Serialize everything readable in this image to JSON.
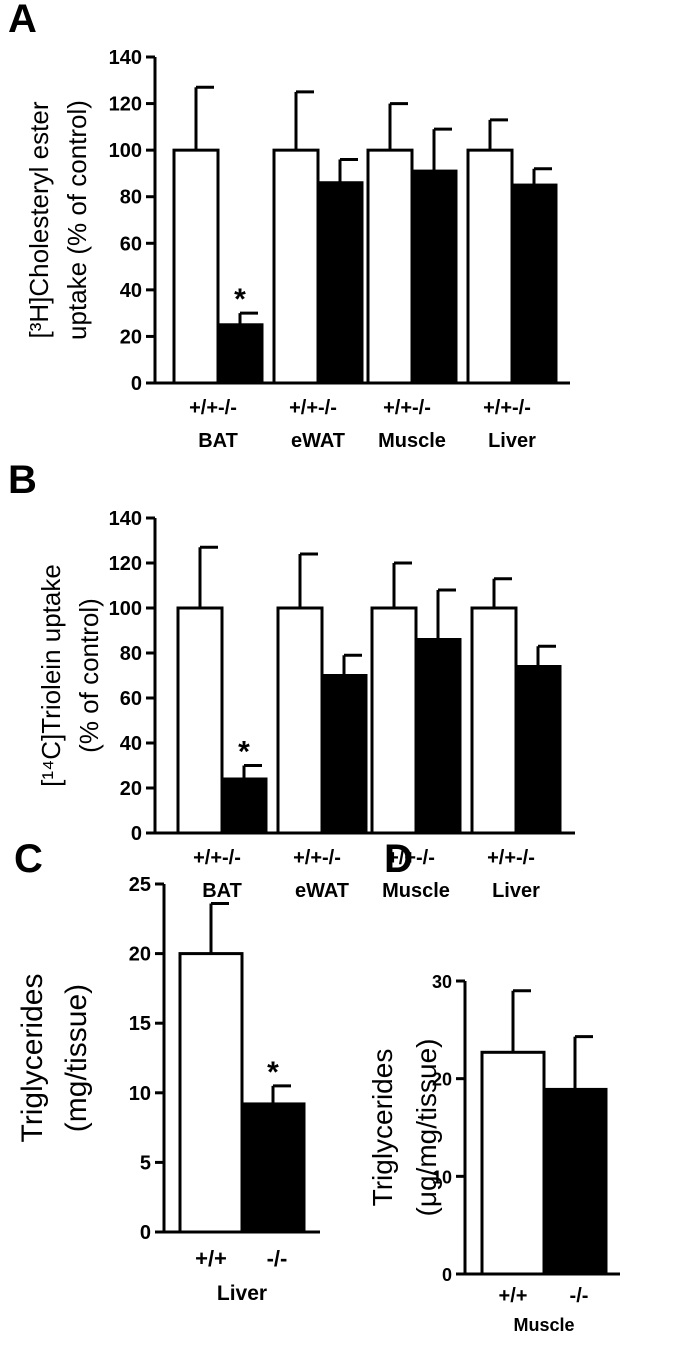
{
  "chart_data": [
    {
      "panel": "A",
      "type": "bar",
      "ylabel_line1": "[³H]Cholesteryl ester",
      "ylabel_line2": "uptake (% of control)",
      "ylim": [
        0,
        140
      ],
      "yticks": [
        0,
        20,
        40,
        60,
        80,
        100,
        120,
        140
      ],
      "groups": [
        {
          "name": "BAT",
          "labels": [
            "+/+",
            "-/-"
          ],
          "values": [
            100,
            25
          ],
          "errors": [
            27,
            5
          ],
          "sig": [
            false,
            true
          ]
        },
        {
          "name": "eWAT",
          "labels": [
            "+/+",
            "-/-"
          ],
          "values": [
            100,
            86
          ],
          "errors": [
            25,
            10
          ],
          "sig": [
            false,
            false
          ]
        },
        {
          "name": "Muscle",
          "labels": [
            "+/+",
            "-/-"
          ],
          "values": [
            100,
            91
          ],
          "errors": [
            20,
            18
          ],
          "sig": [
            false,
            false
          ]
        },
        {
          "name": "Liver",
          "labels": [
            "+/+",
            "-/-"
          ],
          "values": [
            100,
            85
          ],
          "errors": [
            13,
            7
          ],
          "sig": [
            false,
            false
          ]
        }
      ],
      "fills": [
        "#ffffff",
        "#000000"
      ]
    },
    {
      "panel": "B",
      "type": "bar",
      "ylabel_line1": "[¹⁴C]Triolein uptake",
      "ylabel_line2": "(% of control)",
      "ylim": [
        0,
        140
      ],
      "yticks": [
        0,
        20,
        40,
        60,
        80,
        100,
        120,
        140
      ],
      "groups": [
        {
          "name": "BAT",
          "labels": [
            "+/+",
            "-/-"
          ],
          "values": [
            100,
            24
          ],
          "errors": [
            27,
            6
          ],
          "sig": [
            false,
            true
          ]
        },
        {
          "name": "eWAT",
          "labels": [
            "+/+",
            "-/-"
          ],
          "values": [
            100,
            70
          ],
          "errors": [
            24,
            9
          ],
          "sig": [
            false,
            false
          ]
        },
        {
          "name": "Muscle",
          "labels": [
            "+/+",
            "-/-"
          ],
          "values": [
            100,
            86
          ],
          "errors": [
            20,
            22
          ],
          "sig": [
            false,
            false
          ]
        },
        {
          "name": "Liver",
          "labels": [
            "+/+",
            "-/-"
          ],
          "values": [
            100,
            74
          ],
          "errors": [
            13,
            9
          ],
          "sig": [
            false,
            false
          ]
        }
      ],
      "fills": [
        "#ffffff",
        "#000000"
      ]
    },
    {
      "panel": "C",
      "type": "bar",
      "ylabel_line1": "Triglycerides",
      "ylabel_line2": "(mg/tissue)",
      "ylim": [
        0,
        25
      ],
      "yticks": [
        0,
        5,
        10,
        15,
        20,
        25
      ],
      "groups": [
        {
          "name": "Liver",
          "labels": [
            "+/+",
            "-/-"
          ],
          "values": [
            20,
            9.2
          ],
          "errors": [
            3.6,
            1.3
          ],
          "sig": [
            false,
            true
          ]
        }
      ],
      "fills": [
        "#ffffff",
        "#000000"
      ]
    },
    {
      "panel": "D",
      "type": "bar",
      "ylabel_line1": "Triglycerides",
      "ylabel_line2": "(μg/mg/tissue)",
      "ylim": [
        0,
        30
      ],
      "yticks": [
        0,
        10,
        20,
        30
      ],
      "groups": [
        {
          "name": "Muscle",
          "labels": [
            "+/+",
            "-/-"
          ],
          "values": [
            22.7,
            18.9
          ],
          "errors": [
            6.3,
            5.4
          ],
          "sig": [
            false,
            false
          ]
        }
      ],
      "fills": [
        "#ffffff",
        "#000000"
      ]
    }
  ],
  "significance_marker": "*"
}
